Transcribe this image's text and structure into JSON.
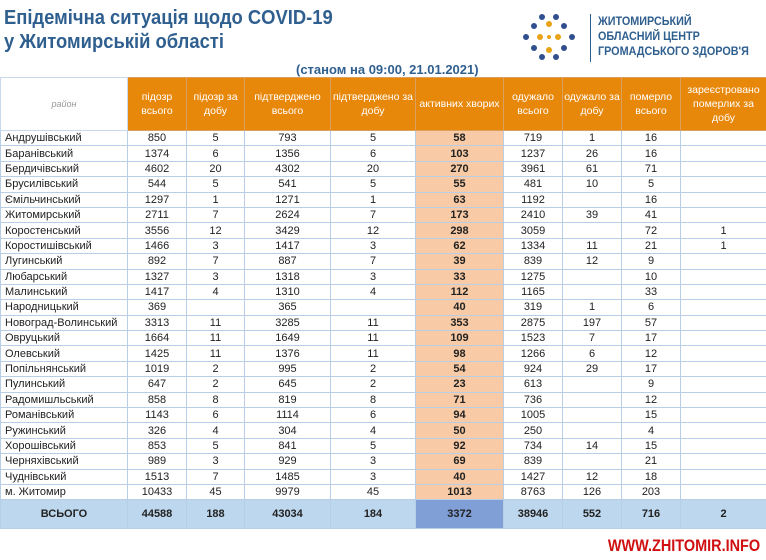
{
  "title_line1": "Епідемічна ситуація щодо COVID-19",
  "title_line2": "у Житомирській області",
  "org": [
    "ЖИТОМИРСЬКИЙ",
    "ОБЛАСНИЙ ЦЕНТР",
    "ГРОМАДСЬКОГО ЗДОРОВ'Я"
  ],
  "as_of": "(станом на 09:00, 21.01.2021)",
  "watermark": "WWW.ZHITOMIR.INFO",
  "colors": {
    "header": "#e8880b",
    "active": "#f8cba6",
    "total": "#bdd7ee",
    "title": "#2f5f8f"
  },
  "columns": [
    "район",
    "підозр всього",
    "підозр за добу",
    "підтверджено всього",
    "підтверджено за добу",
    "активних хворих",
    "одужало всього",
    "одужало за добу",
    "померло всього",
    "зареєстровано померлих за добу"
  ],
  "rows": [
    [
      "Андрушівський",
      "850",
      "5",
      "793",
      "5",
      "58",
      "719",
      "1",
      "16",
      ""
    ],
    [
      "Баранівський",
      "1374",
      "6",
      "1356",
      "6",
      "103",
      "1237",
      "26",
      "16",
      ""
    ],
    [
      "Бердичівський",
      "4602",
      "20",
      "4302",
      "20",
      "270",
      "3961",
      "61",
      "71",
      ""
    ],
    [
      "Брусилівський",
      "544",
      "5",
      "541",
      "5",
      "55",
      "481",
      "10",
      "5",
      ""
    ],
    [
      "Ємільчинський",
      "1297",
      "1",
      "1271",
      "1",
      "63",
      "1192",
      "",
      "16",
      ""
    ],
    [
      "Житомирський",
      "2711",
      "7",
      "2624",
      "7",
      "173",
      "2410",
      "39",
      "41",
      ""
    ],
    [
      "Коростенський",
      "3556",
      "12",
      "3429",
      "12",
      "298",
      "3059",
      "",
      "72",
      "1"
    ],
    [
      "Коростишівський",
      "1466",
      "3",
      "1417",
      "3",
      "62",
      "1334",
      "11",
      "21",
      "1"
    ],
    [
      "Лугинський",
      "892",
      "7",
      "887",
      "7",
      "39",
      "839",
      "12",
      "9",
      ""
    ],
    [
      "Любарський",
      "1327",
      "3",
      "1318",
      "3",
      "33",
      "1275",
      "",
      "10",
      ""
    ],
    [
      "Малинський",
      "1417",
      "4",
      "1310",
      "4",
      "112",
      "1165",
      "",
      "33",
      ""
    ],
    [
      "Народницький",
      "369",
      "",
      "365",
      "",
      "40",
      "319",
      "1",
      "6",
      ""
    ],
    [
      "Новоград-Волинський",
      "3313",
      "11",
      "3285",
      "11",
      "353",
      "2875",
      "197",
      "57",
      ""
    ],
    [
      "Овруцький",
      "1664",
      "11",
      "1649",
      "11",
      "109",
      "1523",
      "7",
      "17",
      ""
    ],
    [
      "Олевський",
      "1425",
      "11",
      "1376",
      "11",
      "98",
      "1266",
      "6",
      "12",
      ""
    ],
    [
      "Попільнянський",
      "1019",
      "2",
      "995",
      "2",
      "54",
      "924",
      "29",
      "17",
      ""
    ],
    [
      "Пулинський",
      "647",
      "2",
      "645",
      "2",
      "23",
      "613",
      "",
      "9",
      ""
    ],
    [
      "Радомишльський",
      "858",
      "8",
      "819",
      "8",
      "71",
      "736",
      "",
      "12",
      ""
    ],
    [
      "Романівський",
      "1143",
      "6",
      "1114",
      "6",
      "94",
      "1005",
      "",
      "15",
      ""
    ],
    [
      "Ружинський",
      "326",
      "4",
      "304",
      "4",
      "50",
      "250",
      "",
      "4",
      ""
    ],
    [
      "Хорошівський",
      "853",
      "5",
      "841",
      "5",
      "92",
      "734",
      "14",
      "15",
      ""
    ],
    [
      "Черняхівський",
      "989",
      "3",
      "929",
      "3",
      "69",
      "839",
      "",
      "21",
      ""
    ],
    [
      "Чуднівський",
      "1513",
      "7",
      "1485",
      "3",
      "40",
      "1427",
      "12",
      "18",
      ""
    ],
    [
      "м. Житомир",
      "10433",
      "45",
      "9979",
      "45",
      "1013",
      "8763",
      "126",
      "203",
      ""
    ]
  ],
  "total": [
    "ВСЬОГО",
    "44588",
    "188",
    "43034",
    "184",
    "3372",
    "38946",
    "552",
    "716",
    "2"
  ]
}
